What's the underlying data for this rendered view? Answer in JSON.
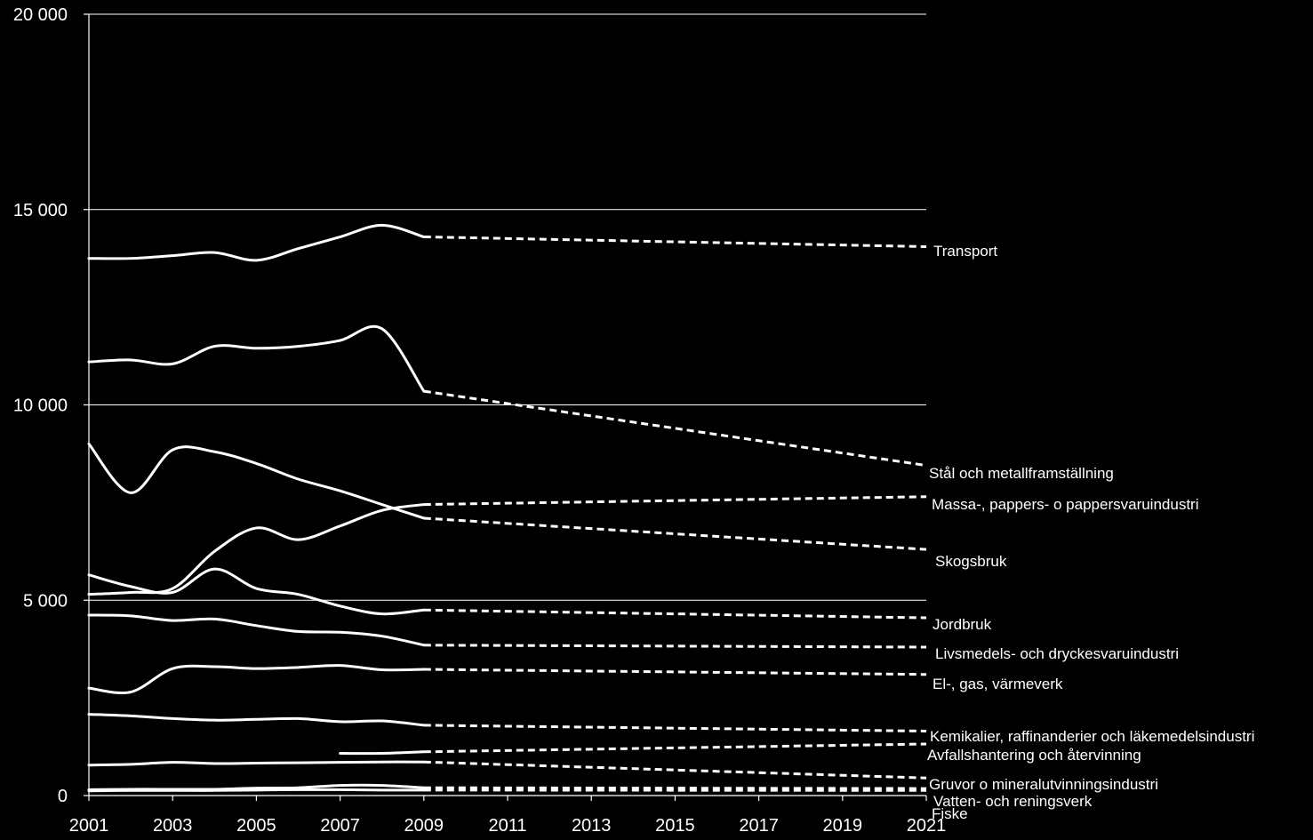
{
  "chart_data": {
    "type": "line",
    "title": "",
    "xlabel": "",
    "ylabel": "",
    "xlim": [
      2001,
      2021
    ],
    "ylim": [
      0,
      20000
    ],
    "grid": "horizontal",
    "legend": "none (labels at right end of lines)",
    "x_ticks": [
      "2001",
      "2003",
      "2005",
      "2007",
      "2009",
      "2011",
      "2013",
      "2015",
      "2017",
      "2019",
      "2021"
    ],
    "y_ticks": [
      "0",
      "5 000",
      "10 000",
      "15 000",
      "20 000"
    ],
    "colors": {
      "background": "#000000",
      "line": "#ffffff"
    },
    "projection": {
      "style": "dashed",
      "from": 2009,
      "to": 2021
    },
    "series": [
      {
        "name": "Transport",
        "historical": [
          [
            2001,
            13750
          ],
          [
            2002,
            13750
          ],
          [
            2003,
            13820
          ],
          [
            2004,
            13900
          ],
          [
            2005,
            13700
          ],
          [
            2006,
            14000
          ],
          [
            2007,
            14300
          ],
          [
            2008,
            14600
          ],
          [
            2009,
            14300
          ]
        ],
        "projection": [
          [
            2009,
            14300
          ],
          [
            2021,
            14050
          ]
        ]
      },
      {
        "name": "Stål och metallframställning",
        "historical": [
          [
            2001,
            11100
          ],
          [
            2002,
            11150
          ],
          [
            2003,
            11050
          ],
          [
            2004,
            11500
          ],
          [
            2005,
            11450
          ],
          [
            2006,
            11500
          ],
          [
            2007,
            11650
          ],
          [
            2008,
            11950
          ],
          [
            2009,
            10350
          ]
        ],
        "projection": [
          [
            2009,
            10350
          ],
          [
            2021,
            8450
          ]
        ]
      },
      {
        "name": "Massa-, pappers- o pappersvaruindustri",
        "historical": [
          [
            2001,
            5150
          ],
          [
            2002,
            5200
          ],
          [
            2003,
            5300
          ],
          [
            2004,
            6250
          ],
          [
            2005,
            6850
          ],
          [
            2006,
            6550
          ],
          [
            2007,
            6900
          ],
          [
            2008,
            7300
          ],
          [
            2009,
            7450
          ]
        ],
        "projection": [
          [
            2009,
            7450
          ],
          [
            2021,
            7650
          ]
        ]
      },
      {
        "name": "Skogsbruk",
        "historical": [
          [
            2001,
            9000
          ],
          [
            2002,
            7750
          ],
          [
            2003,
            8850
          ],
          [
            2004,
            8800
          ],
          [
            2005,
            8500
          ],
          [
            2006,
            8100
          ],
          [
            2007,
            7800
          ],
          [
            2008,
            7450
          ],
          [
            2009,
            7100
          ]
        ],
        "projection": [
          [
            2009,
            7100
          ],
          [
            2021,
            6300
          ]
        ]
      },
      {
        "name": "Jordbruk",
        "historical": [
          [
            2001,
            5650
          ],
          [
            2002,
            5350
          ],
          [
            2003,
            5200
          ],
          [
            2004,
            5800
          ],
          [
            2005,
            5300
          ],
          [
            2006,
            5150
          ],
          [
            2007,
            4850
          ],
          [
            2008,
            4650
          ],
          [
            2009,
            4750
          ]
        ],
        "projection": [
          [
            2009,
            4750
          ],
          [
            2021,
            4550
          ]
        ]
      },
      {
        "name": "Livsmedels- och dryckesvaruindustri",
        "historical": [
          [
            2001,
            4620
          ],
          [
            2002,
            4600
          ],
          [
            2003,
            4480
          ],
          [
            2004,
            4520
          ],
          [
            2005,
            4350
          ],
          [
            2006,
            4200
          ],
          [
            2007,
            4180
          ],
          [
            2008,
            4080
          ],
          [
            2009,
            3850
          ]
        ],
        "projection": [
          [
            2009,
            3850
          ],
          [
            2021,
            3800
          ]
        ]
      },
      {
        "name": "El-, gas, värmeverk",
        "historical": [
          [
            2001,
            2750
          ],
          [
            2002,
            2650
          ],
          [
            2003,
            3250
          ],
          [
            2004,
            3300
          ],
          [
            2005,
            3250
          ],
          [
            2006,
            3280
          ],
          [
            2007,
            3330
          ],
          [
            2008,
            3220
          ],
          [
            2009,
            3230
          ]
        ],
        "projection": [
          [
            2009,
            3230
          ],
          [
            2021,
            3100
          ]
        ]
      },
      {
        "name": "Kemikalier, raffinanderier och läkemedelsindustri",
        "historical": [
          [
            2001,
            2080
          ],
          [
            2002,
            2040
          ],
          [
            2003,
            1970
          ],
          [
            2004,
            1930
          ],
          [
            2005,
            1950
          ],
          [
            2006,
            1970
          ],
          [
            2007,
            1890
          ],
          [
            2008,
            1910
          ],
          [
            2009,
            1800
          ]
        ],
        "projection": [
          [
            2009,
            1800
          ],
          [
            2021,
            1650
          ]
        ]
      },
      {
        "name": "Avfallshantering och återvinning",
        "historical": [
          [
            2007,
            1080
          ],
          [
            2008,
            1080
          ],
          [
            2009,
            1120
          ]
        ],
        "projection": [
          [
            2009,
            1120
          ],
          [
            2021,
            1320
          ]
        ]
      },
      {
        "name": "Gruvor o mineralutvinningsindustri",
        "historical": [
          [
            2001,
            780
          ],
          [
            2002,
            800
          ],
          [
            2003,
            850
          ],
          [
            2004,
            820
          ],
          [
            2005,
            830
          ],
          [
            2006,
            840
          ],
          [
            2007,
            850
          ],
          [
            2008,
            860
          ],
          [
            2009,
            860
          ]
        ],
        "projection": [
          [
            2009,
            860
          ],
          [
            2021,
            450
          ]
        ]
      },
      {
        "name": "Vatten- och reningsverk",
        "historical": [
          [
            2001,
            150
          ],
          [
            2002,
            160
          ],
          [
            2003,
            160
          ],
          [
            2004,
            160
          ],
          [
            2005,
            190
          ],
          [
            2006,
            200
          ],
          [
            2007,
            260
          ],
          [
            2008,
            260
          ],
          [
            2009,
            200
          ]
        ],
        "projection": [
          [
            2009,
            200
          ],
          [
            2021,
            180
          ]
        ]
      },
      {
        "name": "Fiske",
        "historical": [
          [
            2001,
            120
          ],
          [
            2002,
            130
          ],
          [
            2003,
            130
          ],
          [
            2004,
            130
          ],
          [
            2005,
            140
          ],
          [
            2006,
            150
          ],
          [
            2007,
            150
          ],
          [
            2008,
            140
          ],
          [
            2009,
            140
          ]
        ],
        "projection": [
          [
            2009,
            140
          ],
          [
            2021,
            130
          ]
        ]
      }
    ]
  }
}
